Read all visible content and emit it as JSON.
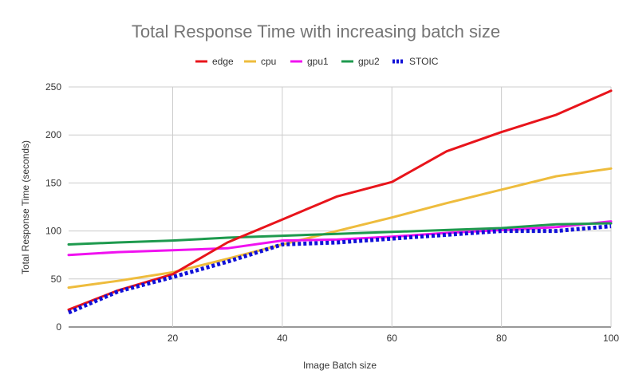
{
  "chart_data": {
    "type": "line",
    "title": "Total Response Time with increasing batch size",
    "xlabel": "Image Batch size",
    "ylabel": "Total Response Time (seconds)",
    "xlim": [
      1,
      100
    ],
    "ylim": [
      0,
      250
    ],
    "xticks": [
      "20",
      "40",
      "60",
      "80",
      "100"
    ],
    "yticks": [
      "0",
      "50",
      "100",
      "150",
      "200",
      "250"
    ],
    "grid": true,
    "legend_position": "top",
    "x": [
      1,
      10,
      20,
      30,
      40,
      50,
      60,
      70,
      80,
      90,
      100
    ],
    "series": [
      {
        "name": "edge",
        "color": "#e8141b",
        "style": "solid",
        "values": [
          18,
          38,
          55,
          88,
          112,
          136,
          151,
          183,
          203,
          221,
          246
        ]
      },
      {
        "name": "cpu",
        "color": "#eebc3d",
        "style": "solid",
        "values": [
          41,
          48,
          57,
          71,
          86,
          100,
          114,
          129,
          143,
          157,
          165
        ]
      },
      {
        "name": "gpu1",
        "color": "#f012f0",
        "style": "solid",
        "values": [
          75,
          78,
          80,
          82,
          90,
          91,
          94,
          98,
          101,
          104,
          110
        ]
      },
      {
        "name": "gpu2",
        "color": "#1e9a4e",
        "style": "solid",
        "values": [
          86,
          88,
          90,
          93,
          95,
          97,
          99,
          101,
          103,
          107,
          108
        ]
      },
      {
        "name": "STOIC",
        "color": "#1010d8",
        "style": "dotted",
        "values": [
          15,
          37,
          52,
          68,
          86,
          88,
          92,
          96,
          100,
          100,
          105
        ]
      }
    ]
  }
}
